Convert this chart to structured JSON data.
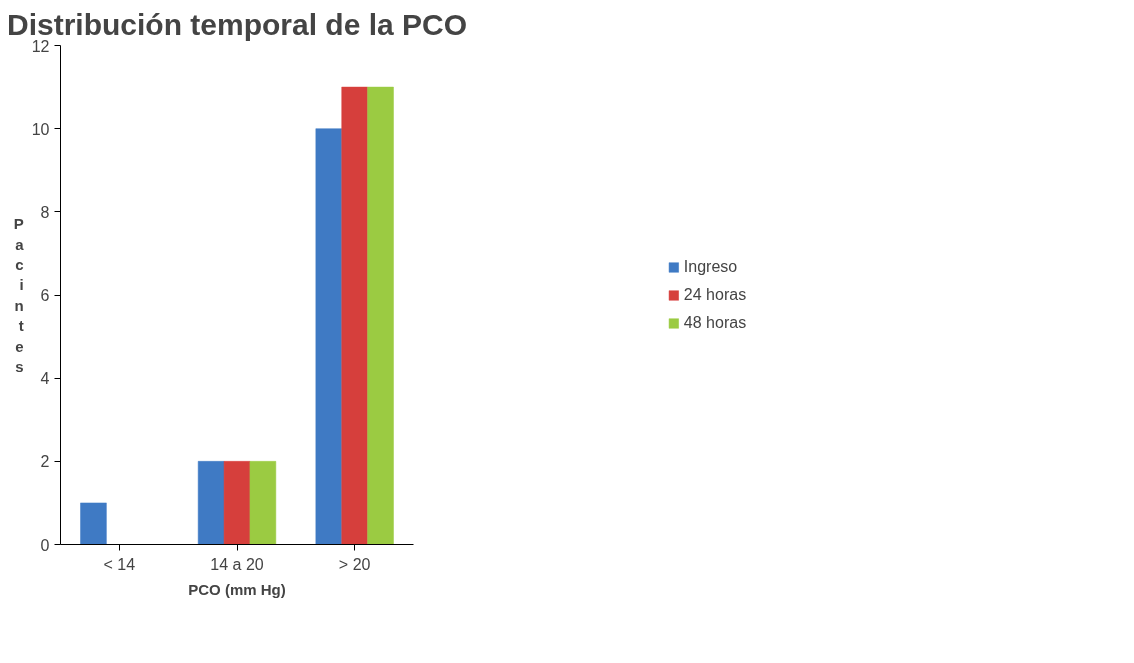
{
  "chart_data": {
    "type": "bar",
    "title": "Distribución temporal de la PCO",
    "xlabel": "PCO (mm Hg)",
    "ylabel": "Pacintes",
    "categories": [
      "< 14",
      "14 a 20",
      "> 20"
    ],
    "series": [
      {
        "name": "Ingreso",
        "color": "#3f7ac4",
        "values": [
          1,
          2,
          10
        ]
      },
      {
        "name": "24 horas",
        "color": "#d63f3c",
        "values": [
          0,
          2,
          11
        ]
      },
      {
        "name": "48 horas",
        "color": "#9bcb42",
        "values": [
          0,
          2,
          11
        ]
      }
    ],
    "ylim": [
      0,
      12
    ],
    "yticks": [
      0,
      2,
      4,
      6,
      8,
      10,
      12
    ],
    "grid": false,
    "legend": "right"
  }
}
